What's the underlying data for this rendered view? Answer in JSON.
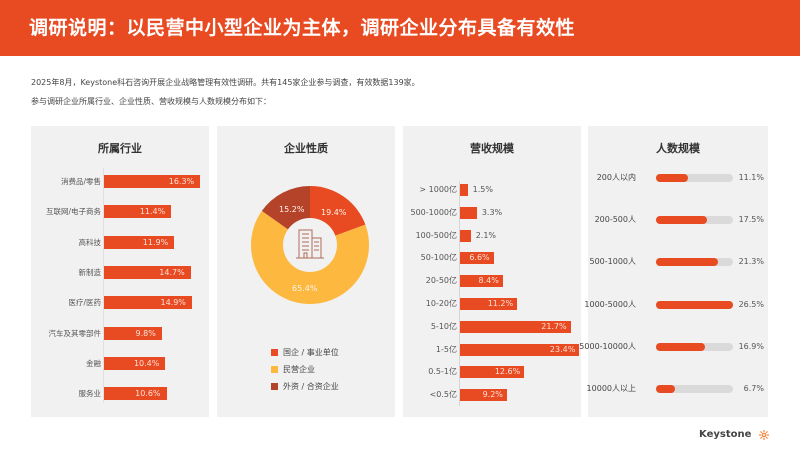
{
  "header": {
    "title": "调研说明：以民营中小型企业为主体，调研企业分布具备有效性"
  },
  "intro": {
    "line1": "2025年8月，Keystone科石咨询开展企业战略管理有效性调研。共有145家企业参与调查，有效数据139家。",
    "line2": "参与调研企业所属行业、企业性质、营收规模与人数规模分布如下："
  },
  "colors": {
    "accent": "#e84a22",
    "yellow": "#fdb840",
    "brown": "#b5432a",
    "track": "#dadada",
    "panel_bg": "#f1f1f1"
  },
  "chart_data": [
    {
      "type": "bar",
      "orientation": "horizontal",
      "title": "所属行业",
      "categories": [
        "消费品/零售",
        "互联网/电子商务",
        "高科技",
        "新制造",
        "医疗/医药",
        "汽车及其零部件",
        "金融",
        "服务业"
      ],
      "values": [
        16.3,
        11.4,
        11.9,
        14.7,
        14.9,
        9.8,
        10.4,
        10.6
      ],
      "labels": [
        "16.3%",
        "11.4%",
        "11.9%",
        "14.7%",
        "14.9%",
        "9.8%",
        "10.4%",
        "10.6%"
      ],
      "unit": "%"
    },
    {
      "type": "pie",
      "subtype": "donut",
      "title": "企业性质",
      "categories": [
        "国企 / 事业单位",
        "民营企业",
        "外资 / 合资企业"
      ],
      "values": [
        19.4,
        65.4,
        15.2
      ],
      "labels": [
        "19.4%",
        "65.4%",
        "15.2%"
      ],
      "colors": [
        "#e84a22",
        "#fdb840",
        "#b5432a"
      ],
      "center_icon": "building-icon",
      "legend_position": "bottom"
    },
    {
      "type": "bar",
      "orientation": "horizontal",
      "title": "营收规模",
      "categories": [
        "> 1000亿",
        "500-1000亿",
        "100-500亿",
        "50-100亿",
        "20-50亿",
        "10-20亿",
        "5-10亿",
        "1-5亿",
        "0.5-1亿",
        "<0.5亿"
      ],
      "values": [
        1.5,
        3.3,
        2.1,
        6.6,
        8.4,
        11.2,
        21.7,
        23.4,
        12.6,
        9.2
      ],
      "labels": [
        "1.5%",
        "3.3%",
        "2.1%",
        "6.6%",
        "8.4%",
        "11.2%",
        "21.7%",
        "23.4%",
        "12.6%",
        "9.2%"
      ],
      "unit": "%"
    },
    {
      "type": "bar",
      "orientation": "horizontal",
      "subtype": "progress",
      "title": "人数规模",
      "categories": [
        "200人以内",
        "200-500人",
        "500-1000人",
        "1000-5000人",
        "5000-10000人",
        "10000人以上"
      ],
      "values": [
        11.1,
        17.5,
        21.3,
        26.5,
        16.9,
        6.7
      ],
      "labels": [
        "11.1%",
        "17.5%",
        "21.3%",
        "26.5%",
        "16.9%",
        "6.7%"
      ],
      "unit": "%"
    }
  ],
  "panels": {
    "industry": {
      "title": "所属行业",
      "rows": [
        {
          "label": "消费品/零售",
          "value": "16.3%"
        },
        {
          "label": "互联网/电子商务",
          "value": "11.4%"
        },
        {
          "label": "高科技",
          "value": "11.9%"
        },
        {
          "label": "新制造",
          "value": "14.7%"
        },
        {
          "label": "医疗/医药",
          "value": "14.9%"
        },
        {
          "label": "汽车及其零部件",
          "value": "9.8%"
        },
        {
          "label": "金融",
          "value": "10.4%"
        },
        {
          "label": "服务业",
          "value": "10.6%"
        }
      ]
    },
    "nature": {
      "title": "企业性质",
      "slices": [
        {
          "label": "国企 / 事业单位",
          "value": "19.4%"
        },
        {
          "label": "民营企业",
          "value": "65.4%"
        },
        {
          "label": "外资 / 合资企业",
          "value": "15.2%"
        }
      ]
    },
    "revenue": {
      "title": "营收规模",
      "rows": [
        {
          "label": "> 1000亿",
          "value": "1.5%"
        },
        {
          "label": "500-1000亿",
          "value": "3.3%"
        },
        {
          "label": "100-500亿",
          "value": "2.1%"
        },
        {
          "label": "50-100亿",
          "value": "6.6%"
        },
        {
          "label": "20-50亿",
          "value": "8.4%"
        },
        {
          "label": "10-20亿",
          "value": "11.2%"
        },
        {
          "label": "5-10亿",
          "value": "21.7%"
        },
        {
          "label": "1-5亿",
          "value": "23.4%"
        },
        {
          "label": "0.5-1亿",
          "value": "12.6%"
        },
        {
          "label": "<0.5亿",
          "value": "9.2%"
        }
      ]
    },
    "headcount": {
      "title": "人数规模",
      "rows": [
        {
          "label": "200人以内",
          "value": "11.1%"
        },
        {
          "label": "200-500人",
          "value": "17.5%"
        },
        {
          "label": "500-1000人",
          "value": "21.3%"
        },
        {
          "label": "1000-5000人",
          "value": "26.5%"
        },
        {
          "label": "5000-10000人",
          "value": "16.9%"
        },
        {
          "label": "10000人以上",
          "value": "6.7%"
        }
      ]
    }
  },
  "footer": {
    "brand": "Keystone",
    "brand_icon": "sun-gear-icon"
  }
}
